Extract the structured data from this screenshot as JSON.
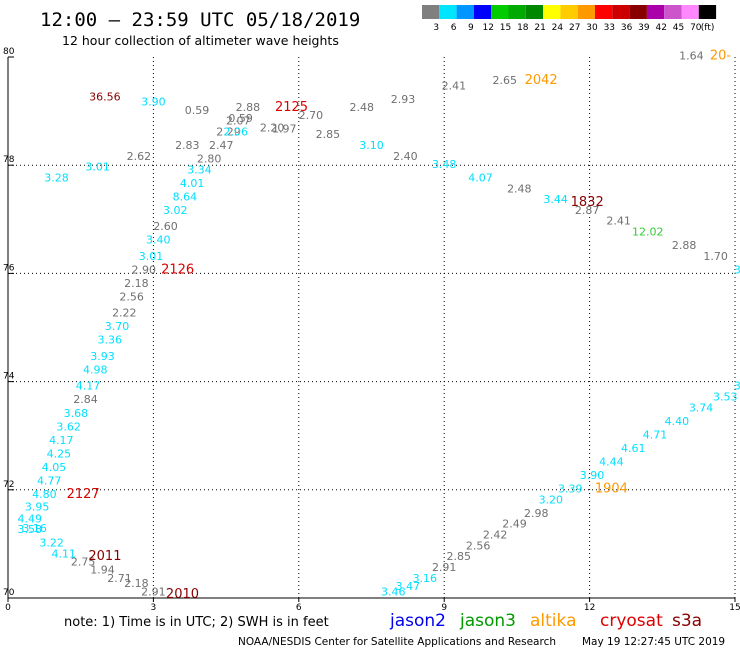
{
  "header": {
    "title": "12:00 – 23:59 UTC 05/18/2019",
    "subtitle": "12 hour collection of altimeter wave heights"
  },
  "legend": {
    "unit": "(ft)",
    "bins": [
      {
        "label": "3",
        "color": "#7f7f7f"
      },
      {
        "label": "6",
        "color": "#00e5ff"
      },
      {
        "label": "9",
        "color": "#0096ff"
      },
      {
        "label": "12",
        "color": "#0000ff"
      },
      {
        "label": "15",
        "color": "#00cc00"
      },
      {
        "label": "18",
        "color": "#00aa00"
      },
      {
        "label": "21",
        "color": "#008800"
      },
      {
        "label": "24",
        "color": "#ffff00"
      },
      {
        "label": "27",
        "color": "#ffcc00"
      },
      {
        "label": "30",
        "color": "#ff9900"
      },
      {
        "label": "33",
        "color": "#ff0000"
      },
      {
        "label": "36",
        "color": "#cc0000"
      },
      {
        "label": "39",
        "color": "#880000"
      },
      {
        "label": "42",
        "color": "#aa00aa"
      },
      {
        "label": "45",
        "color": "#cc55cc"
      },
      {
        "label": "70",
        "color": "#ff88ff"
      },
      {
        "label": "",
        "color": "#000000"
      }
    ]
  },
  "footer": {
    "note": "note:  1) Time is in UTC;  2) SWH is in feet",
    "satellites": [
      {
        "name": "jason2",
        "color": "#0000ee"
      },
      {
        "name": "jason3",
        "color": "#009900"
      },
      {
        "name": "altika",
        "color": "#ff9900"
      },
      {
        "name": "cryosat",
        "color": "#dd0000"
      },
      {
        "name": "s3a",
        "color": "#880000"
      }
    ],
    "credit": "NOAA/NESDIS Center for Satellite Applications and Research",
    "stamp": "May 19 12:27:45 UTC 2019"
  },
  "chart_data": {
    "type": "scatter",
    "x_ticks": [
      "0",
      "3",
      "6",
      "9",
      "12",
      "15"
    ],
    "y_ticks": [
      "70",
      "72",
      "74",
      "76",
      "78",
      "80"
    ],
    "xlim": [
      0,
      15
    ],
    "ylim": [
      70,
      80
    ],
    "grid": "dotted",
    "colors": {
      "gray": "#707070",
      "cyan": "#00dfff",
      "red": "#dd0000",
      "darkred": "#880000",
      "orange": "#ff9900",
      "green": "#33cc33"
    },
    "values": [
      {
        "t": "36.56",
        "x": 2.0,
        "y": 79.2,
        "c": "darkred"
      },
      {
        "t": "3.90",
        "x": 3.0,
        "y": 79.1,
        "c": "cyan"
      },
      {
        "t": "0.59",
        "x": 3.9,
        "y": 78.95,
        "c": "gray"
      },
      {
        "t": "2.88",
        "x": 4.95,
        "y": 79.0,
        "c": "gray"
      },
      {
        "t": "0.59",
        "x": 4.8,
        "y": 78.8,
        "c": "gray"
      },
      {
        "t": "2.07",
        "x": 4.75,
        "y": 78.75,
        "c": "gray"
      },
      {
        "t": "2.20",
        "x": 5.45,
        "y": 78.62,
        "c": "gray"
      },
      {
        "t": "1.97",
        "x": 5.7,
        "y": 78.6,
        "c": "gray"
      },
      {
        "t": "2.70",
        "x": 6.25,
        "y": 78.85,
        "c": "gray"
      },
      {
        "t": "2.48",
        "x": 7.3,
        "y": 79.0,
        "c": "gray"
      },
      {
        "t": "2.93",
        "x": 8.15,
        "y": 79.15,
        "c": "gray"
      },
      {
        "t": "2.41",
        "x": 9.2,
        "y": 79.4,
        "c": "gray"
      },
      {
        "t": "2.65",
        "x": 10.25,
        "y": 79.5,
        "c": "gray"
      },
      {
        "t": "1.64",
        "x": 14.1,
        "y": 79.95,
        "c": "gray"
      },
      {
        "t": "2.29",
        "x": 4.55,
        "y": 78.55,
        "c": "gray"
      },
      {
        "t": "2.06",
        "x": 4.7,
        "y": 78.55,
        "c": "cyan"
      },
      {
        "t": "2.47",
        "x": 4.4,
        "y": 78.3,
        "c": "gray"
      },
      {
        "t": "2.83",
        "x": 3.7,
        "y": 78.3,
        "c": "gray"
      },
      {
        "t": "2.85",
        "x": 6.6,
        "y": 78.5,
        "c": "gray"
      },
      {
        "t": "3.10",
        "x": 7.5,
        "y": 78.3,
        "c": "cyan"
      },
      {
        "t": "2.40",
        "x": 8.2,
        "y": 78.1,
        "c": "gray"
      },
      {
        "t": "3.48",
        "x": 9.0,
        "y": 77.95,
        "c": "cyan"
      },
      {
        "t": "4.07",
        "x": 9.75,
        "y": 77.7,
        "c": "cyan"
      },
      {
        "t": "2.48",
        "x": 10.55,
        "y": 77.5,
        "c": "gray"
      },
      {
        "t": "3.44",
        "x": 11.3,
        "y": 77.3,
        "c": "cyan"
      },
      {
        "t": "2.87",
        "x": 11.95,
        "y": 77.1,
        "c": "gray"
      },
      {
        "t": "2.41",
        "x": 12.6,
        "y": 76.9,
        "c": "gray"
      },
      {
        "t": "12.02",
        "x": 13.2,
        "y": 76.7,
        "c": "green"
      },
      {
        "t": "2.88",
        "x": 13.95,
        "y": 76.45,
        "c": "gray"
      },
      {
        "t": "1.70",
        "x": 14.6,
        "y": 76.25,
        "c": "gray"
      },
      {
        "t": "2.62",
        "x": 2.7,
        "y": 78.1,
        "c": "gray"
      },
      {
        "t": "2.80",
        "x": 4.15,
        "y": 78.05,
        "c": "gray"
      },
      {
        "t": "3.34",
        "x": 3.95,
        "y": 77.85,
        "c": "cyan"
      },
      {
        "t": "4.01",
        "x": 3.8,
        "y": 77.6,
        "c": "cyan"
      },
      {
        "t": "3.01",
        "x": 1.85,
        "y": 77.9,
        "c": "cyan"
      },
      {
        "t": "3.28",
        "x": 1.0,
        "y": 77.7,
        "c": "cyan"
      },
      {
        "t": "8.64",
        "x": 3.65,
        "y": 77.35,
        "c": "cyan"
      },
      {
        "t": "3.02",
        "x": 3.45,
        "y": 77.1,
        "c": "cyan"
      },
      {
        "t": "2.60",
        "x": 3.25,
        "y": 76.8,
        "c": "gray"
      },
      {
        "t": "3.40",
        "x": 3.1,
        "y": 76.55,
        "c": "cyan"
      },
      {
        "t": "3.01",
        "x": 2.95,
        "y": 76.25,
        "c": "cyan"
      },
      {
        "t": "2.90",
        "x": 2.8,
        "y": 76.0,
        "c": "gray"
      },
      {
        "t": "2.18",
        "x": 2.65,
        "y": 75.75,
        "c": "gray"
      },
      {
        "t": "2.56",
        "x": 2.55,
        "y": 75.5,
        "c": "gray"
      },
      {
        "t": "2.22",
        "x": 2.4,
        "y": 75.2,
        "c": "gray"
      },
      {
        "t": "3.70",
        "x": 2.25,
        "y": 74.95,
        "c": "cyan"
      },
      {
        "t": "3.36",
        "x": 2.1,
        "y": 74.7,
        "c": "cyan"
      },
      {
        "t": "3.93",
        "x": 1.95,
        "y": 74.4,
        "c": "cyan"
      },
      {
        "t": "4.98",
        "x": 1.8,
        "y": 74.15,
        "c": "cyan"
      },
      {
        "t": "4.17",
        "x": 1.65,
        "y": 73.85,
        "c": "cyan"
      },
      {
        "t": "2.84",
        "x": 1.6,
        "y": 73.6,
        "c": "gray"
      },
      {
        "t": "3.68",
        "x": 1.4,
        "y": 73.35,
        "c": "cyan"
      },
      {
        "t": "3.62",
        "x": 1.25,
        "y": 73.1,
        "c": "cyan"
      },
      {
        "t": "4.17",
        "x": 1.1,
        "y": 72.85,
        "c": "cyan"
      },
      {
        "t": "4.25",
        "x": 1.05,
        "y": 72.6,
        "c": "cyan"
      },
      {
        "t": "4.05",
        "x": 0.95,
        "y": 72.35,
        "c": "cyan"
      },
      {
        "t": "4.77",
        "x": 0.85,
        "y": 72.1,
        "c": "cyan"
      },
      {
        "t": "4.80",
        "x": 0.75,
        "y": 71.85,
        "c": "cyan"
      },
      {
        "t": "3.95",
        "x": 0.6,
        "y": 71.62,
        "c": "cyan"
      },
      {
        "t": "4.49",
        "x": 0.45,
        "y": 71.4,
        "c": "cyan"
      },
      {
        "t": "3.58",
        "x": 0.45,
        "y": 71.2,
        "c": "cyan"
      },
      {
        "t": "3.16",
        "x": 0.55,
        "y": 71.22,
        "c": "cyan"
      },
      {
        "t": "3.22",
        "x": 0.9,
        "y": 70.95,
        "c": "cyan"
      },
      {
        "t": "4.11",
        "x": 1.15,
        "y": 70.75,
        "c": "cyan"
      },
      {
        "t": "2.75",
        "x": 1.55,
        "y": 70.6,
        "c": "gray"
      },
      {
        "t": "1.94",
        "x": 1.95,
        "y": 70.45,
        "c": "gray"
      },
      {
        "t": "2.71",
        "x": 2.3,
        "y": 70.3,
        "c": "gray"
      },
      {
        "t": "2.18",
        "x": 2.65,
        "y": 70.2,
        "c": "gray"
      },
      {
        "t": "2.91",
        "x": 3.0,
        "y": 70.05,
        "c": "gray"
      },
      {
        "t": "3.46",
        "x": 7.95,
        "y": 70.05,
        "c": "cyan"
      },
      {
        "t": "3.47",
        "x": 8.25,
        "y": 70.15,
        "c": "cyan"
      },
      {
        "t": "3.16",
        "x": 8.6,
        "y": 70.3,
        "c": "cyan"
      },
      {
        "t": "2.91",
        "x": 9.0,
        "y": 70.5,
        "c": "gray"
      },
      {
        "t": "2.85",
        "x": 9.3,
        "y": 70.7,
        "c": "gray"
      },
      {
        "t": "2.56",
        "x": 9.7,
        "y": 70.9,
        "c": "gray"
      },
      {
        "t": "2.42",
        "x": 10.05,
        "y": 71.1,
        "c": "gray"
      },
      {
        "t": "2.49",
        "x": 10.45,
        "y": 71.3,
        "c": "gray"
      },
      {
        "t": "2.98",
        "x": 10.9,
        "y": 71.5,
        "c": "gray"
      },
      {
        "t": "3.20",
        "x": 11.2,
        "y": 71.75,
        "c": "cyan"
      },
      {
        "t": "3.39",
        "x": 11.6,
        "y": 71.95,
        "c": "cyan"
      },
      {
        "t": "3.90",
        "x": 12.05,
        "y": 72.2,
        "c": "cyan"
      },
      {
        "t": "4.44",
        "x": 12.45,
        "y": 72.45,
        "c": "cyan"
      },
      {
        "t": "4.61",
        "x": 12.9,
        "y": 72.7,
        "c": "cyan"
      },
      {
        "t": "4.71",
        "x": 13.35,
        "y": 72.95,
        "c": "cyan"
      },
      {
        "t": "4.40",
        "x": 13.8,
        "y": 73.2,
        "c": "cyan"
      },
      {
        "t": "3.74",
        "x": 14.3,
        "y": 73.45,
        "c": "cyan"
      },
      {
        "t": "3.53",
        "x": 14.8,
        "y": 73.65,
        "c": "cyan"
      },
      {
        "t": "3",
        "x": 15.05,
        "y": 73.85,
        "c": "cyan"
      },
      {
        "t": "3",
        "x": 15.05,
        "y": 76.0,
        "c": "cyan"
      }
    ],
    "times": [
      {
        "t": "2125",
        "x": 5.85,
        "y": 79.0,
        "c": "red"
      },
      {
        "t": "2042",
        "x": 11.0,
        "y": 79.5,
        "c": "orange"
      },
      {
        "t": "20-",
        "x": 14.7,
        "y": 79.95,
        "c": "orange"
      },
      {
        "t": "1832",
        "x": 11.95,
        "y": 77.25,
        "c": "darkred"
      },
      {
        "t": "2126",
        "x": 3.5,
        "y": 76.0,
        "c": "red"
      },
      {
        "t": "2127",
        "x": 1.55,
        "y": 71.85,
        "c": "red"
      },
      {
        "t": "1904",
        "x": 12.45,
        "y": 71.95,
        "c": "orange"
      },
      {
        "t": "2011",
        "x": 2.0,
        "y": 70.7,
        "c": "darkred"
      },
      {
        "t": "2010",
        "x": 3.6,
        "y": 70.0,
        "c": "darkred"
      }
    ]
  }
}
